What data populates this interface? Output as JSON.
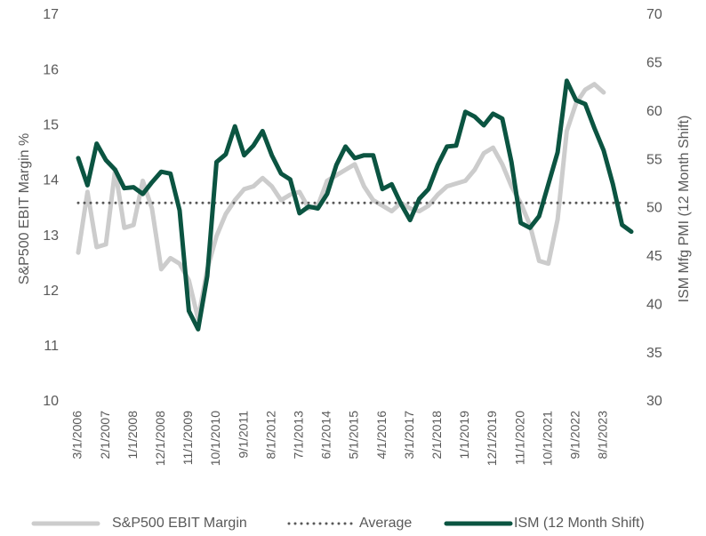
{
  "chart_data": {
    "type": "line",
    "ylabel": "S&P500 EBIT Margin %",
    "y2label": "ISM Mfg PMI (12 Month Shift)",
    "categories": [
      "3/1/2006",
      null,
      null,
      "2/1/2007",
      null,
      null,
      "1/1/2008",
      null,
      null,
      "12/1/2008",
      null,
      null,
      "11/1/2009",
      null,
      null,
      "10/1/2010",
      null,
      null,
      "9/1/2011",
      null,
      null,
      "8/1/2012",
      null,
      null,
      "7/1/2013",
      null,
      null,
      "6/1/2014",
      null,
      null,
      "5/1/2015",
      null,
      null,
      "4/1/2016",
      null,
      null,
      "3/1/2017",
      null,
      null,
      "2/1/2018",
      null,
      null,
      "1/1/2019",
      null,
      null,
      "12/1/2019",
      null,
      null,
      "11/1/2020",
      null,
      null,
      "10/1/2021",
      null,
      null,
      "9/1/2022",
      null,
      null,
      "8/1/2023",
      null,
      null,
      null
    ],
    "ylim": [
      10,
      17
    ],
    "yticks": [
      10,
      11,
      12,
      13,
      14,
      15,
      16,
      17
    ],
    "y2lim": [
      30,
      70
    ],
    "y2ticks": [
      30,
      35,
      40,
      45,
      50,
      55,
      60,
      65,
      70
    ],
    "legend": "bottom",
    "series": [
      {
        "name": "S&P500 EBIT Margin",
        "color": "#cccccc",
        "style": "solid",
        "width": 5,
        "values": [
          12.7,
          13.8,
          12.8,
          12.85,
          14.2,
          13.15,
          13.2,
          14.0,
          13.5,
          12.4,
          12.6,
          12.5,
          12.2,
          11.5,
          12.4,
          13.0,
          13.4,
          13.65,
          13.85,
          13.9,
          14.05,
          13.9,
          13.65,
          13.75,
          13.8,
          13.5,
          13.55,
          14.0,
          14.1,
          14.2,
          14.3,
          13.9,
          13.65,
          13.55,
          13.45,
          13.6,
          13.5,
          13.45,
          13.55,
          13.75,
          13.9,
          13.95,
          14.0,
          14.2,
          14.5,
          14.6,
          14.3,
          13.9,
          13.6,
          13.2,
          12.55,
          12.5,
          13.3,
          14.9,
          15.4,
          15.65,
          15.75,
          15.6,
          null,
          null,
          null
        ]
      },
      {
        "name": "Average",
        "color": "#595959",
        "style": "dotted",
        "width": 3,
        "values": [
          13.6,
          13.6,
          13.6,
          13.6,
          13.6,
          13.6,
          13.6,
          13.6,
          13.6,
          13.6,
          13.6,
          13.6,
          13.6,
          13.6,
          13.6,
          13.6,
          13.6,
          13.6,
          13.6,
          13.6,
          13.6,
          13.6,
          13.6,
          13.6,
          13.6,
          13.6,
          13.6,
          13.6,
          13.6,
          13.6,
          13.6,
          13.6,
          13.6,
          13.6,
          13.6,
          13.6,
          13.6,
          13.6,
          13.6,
          13.6,
          13.6,
          13.6,
          13.6,
          13.6,
          13.6,
          13.6,
          13.6,
          13.6,
          13.6,
          13.6,
          13.6,
          13.6,
          13.6,
          13.6,
          13.6,
          13.6,
          13.6,
          13.6,
          13.6,
          13.6,
          13.6
        ]
      },
      {
        "name": "ISM (12 Month Shift)",
        "color": "#0b5441",
        "style": "solid",
        "width": 5,
        "axis": "y2",
        "values": [
          55.2,
          52.4,
          56.7,
          55.0,
          54.0,
          52.1,
          52.2,
          51.5,
          52.7,
          53.8,
          53.6,
          49.8,
          39.4,
          37.5,
          43.0,
          54.8,
          55.6,
          58.5,
          55.5,
          56.5,
          58.0,
          55.5,
          53.6,
          53.0,
          49.5,
          50.2,
          50.0,
          51.5,
          54.5,
          56.4,
          55.2,
          55.5,
          55.5,
          52.0,
          52.5,
          50.5,
          48.8,
          51.0,
          52.0,
          54.5,
          56.4,
          56.5,
          60.0,
          59.5,
          58.6,
          59.8,
          59.3,
          54.8,
          48.5,
          48.0,
          49.2,
          52.5,
          55.8,
          63.2,
          61.2,
          60.8,
          58.3,
          56.0,
          52.5,
          48.3,
          47.6
        ]
      }
    ]
  }
}
